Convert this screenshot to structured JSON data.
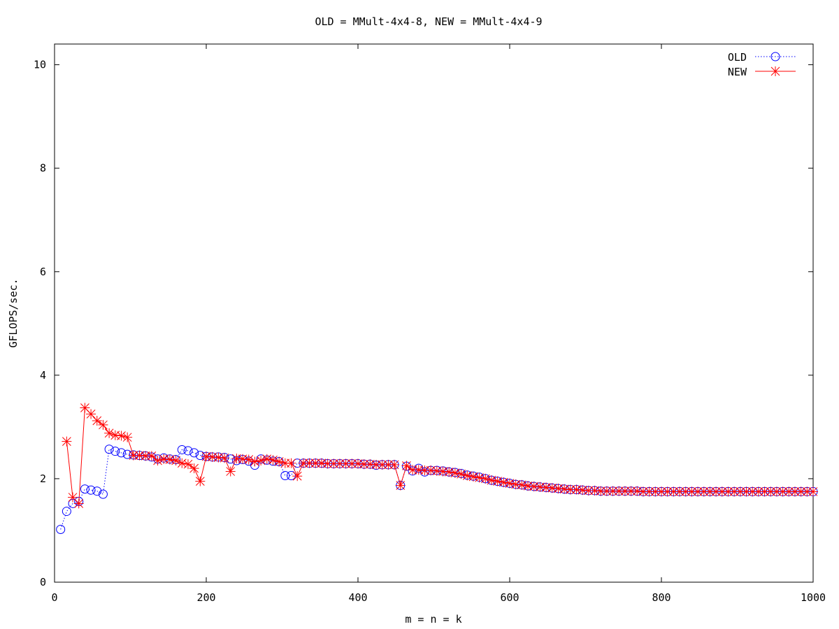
{
  "chart_data": {
    "type": "line",
    "title": "OLD = MMult-4x4-8, NEW = MMult-4x4-9",
    "xlabel": "m = n = k",
    "ylabel": "GFLOPS/sec.",
    "xlim": [
      0,
      1000
    ],
    "ylim": [
      0,
      10.4
    ],
    "xticks": [
      0,
      200,
      400,
      600,
      800,
      1000
    ],
    "yticks": [
      0,
      2,
      4,
      6,
      8,
      10
    ],
    "grid": false,
    "legend_position": "top-right",
    "x": [
      8,
      16,
      24,
      32,
      40,
      48,
      56,
      64,
      72,
      80,
      88,
      96,
      104,
      112,
      120,
      128,
      136,
      144,
      152,
      160,
      168,
      176,
      184,
      192,
      200,
      208,
      216,
      224,
      232,
      240,
      248,
      256,
      264,
      272,
      280,
      288,
      296,
      304,
      312,
      320,
      328,
      336,
      344,
      352,
      360,
      368,
      376,
      384,
      392,
      400,
      408,
      416,
      424,
      432,
      440,
      448,
      456,
      464,
      472,
      480,
      488,
      496,
      504,
      512,
      520,
      528,
      536,
      544,
      552,
      560,
      568,
      576,
      584,
      592,
      600,
      608,
      616,
      624,
      632,
      640,
      648,
      656,
      664,
      672,
      680,
      688,
      696,
      704,
      712,
      720,
      728,
      736,
      744,
      752,
      760,
      768,
      776,
      784,
      792,
      800,
      808,
      816,
      824,
      832,
      840,
      848,
      856,
      864,
      872,
      880,
      888,
      896,
      904,
      912,
      920,
      928,
      936,
      944,
      952,
      960,
      968,
      976,
      984,
      992,
      1000
    ],
    "series": [
      {
        "name": "OLD",
        "color": "#0000ff",
        "marker": "circle",
        "line": "dotted",
        "values": [
          1.02,
          1.37,
          1.52,
          1.56,
          1.8,
          1.78,
          1.76,
          1.7,
          2.57,
          2.53,
          2.5,
          2.47,
          2.46,
          2.45,
          2.44,
          2.42,
          2.38,
          2.4,
          2.38,
          2.37,
          2.56,
          2.54,
          2.5,
          2.45,
          2.43,
          2.42,
          2.42,
          2.41,
          2.38,
          2.35,
          2.37,
          2.34,
          2.26,
          2.38,
          2.36,
          2.34,
          2.33,
          2.06,
          2.06,
          2.3,
          2.3,
          2.3,
          2.3,
          2.3,
          2.29,
          2.29,
          2.29,
          2.29,
          2.29,
          2.29,
          2.28,
          2.28,
          2.26,
          2.27,
          2.27,
          2.27,
          1.87,
          2.24,
          2.15,
          2.2,
          2.13,
          2.16,
          2.16,
          2.15,
          2.13,
          2.12,
          2.1,
          2.07,
          2.05,
          2.03,
          2.0,
          1.97,
          1.95,
          1.93,
          1.91,
          1.89,
          1.88,
          1.86,
          1.85,
          1.84,
          1.83,
          1.82,
          1.81,
          1.8,
          1.79,
          1.79,
          1.78,
          1.77,
          1.77,
          1.76,
          1.76,
          1.76,
          1.76,
          1.76,
          1.76,
          1.76,
          1.75,
          1.75,
          1.75,
          1.75,
          1.75,
          1.75,
          1.75,
          1.75,
          1.75,
          1.75,
          1.75,
          1.75,
          1.75,
          1.75,
          1.75,
          1.75,
          1.75,
          1.75,
          1.75,
          1.75,
          1.75,
          1.75,
          1.75,
          1.75,
          1.75,
          1.75,
          1.75,
          1.75,
          1.75
        ]
      },
      {
        "name": "NEW",
        "color": "#ff0000",
        "marker": "asterisk",
        "line": "solid",
        "values": [
          null,
          2.72,
          1.64,
          1.52,
          3.37,
          3.25,
          3.12,
          3.04,
          2.88,
          2.84,
          2.83,
          2.8,
          2.45,
          2.45,
          2.44,
          2.44,
          2.35,
          2.38,
          2.37,
          2.35,
          2.3,
          2.28,
          2.2,
          1.95,
          2.43,
          2.42,
          2.41,
          2.4,
          2.14,
          2.39,
          2.38,
          2.37,
          2.33,
          2.35,
          2.38,
          2.36,
          2.33,
          2.3,
          2.3,
          2.05,
          2.3,
          2.3,
          2.3,
          2.3,
          2.29,
          2.29,
          2.29,
          2.29,
          2.29,
          2.29,
          2.28,
          2.28,
          2.27,
          2.27,
          2.27,
          2.27,
          1.87,
          2.25,
          2.17,
          2.17,
          2.16,
          2.16,
          2.15,
          2.14,
          2.13,
          2.11,
          2.09,
          2.06,
          2.04,
          2.02,
          2.0,
          1.97,
          1.95,
          1.93,
          1.91,
          1.89,
          1.88,
          1.86,
          1.85,
          1.84,
          1.83,
          1.82,
          1.81,
          1.8,
          1.79,
          1.79,
          1.78,
          1.77,
          1.77,
          1.76,
          1.76,
          1.76,
          1.76,
          1.76,
          1.76,
          1.76,
          1.75,
          1.75,
          1.75,
          1.75,
          1.75,
          1.75,
          1.75,
          1.75,
          1.75,
          1.75,
          1.75,
          1.75,
          1.75,
          1.75,
          1.75,
          1.75,
          1.75,
          1.75,
          1.75,
          1.75,
          1.75,
          1.75,
          1.75,
          1.75,
          1.75,
          1.75,
          1.75,
          1.75,
          1.75
        ]
      }
    ]
  }
}
